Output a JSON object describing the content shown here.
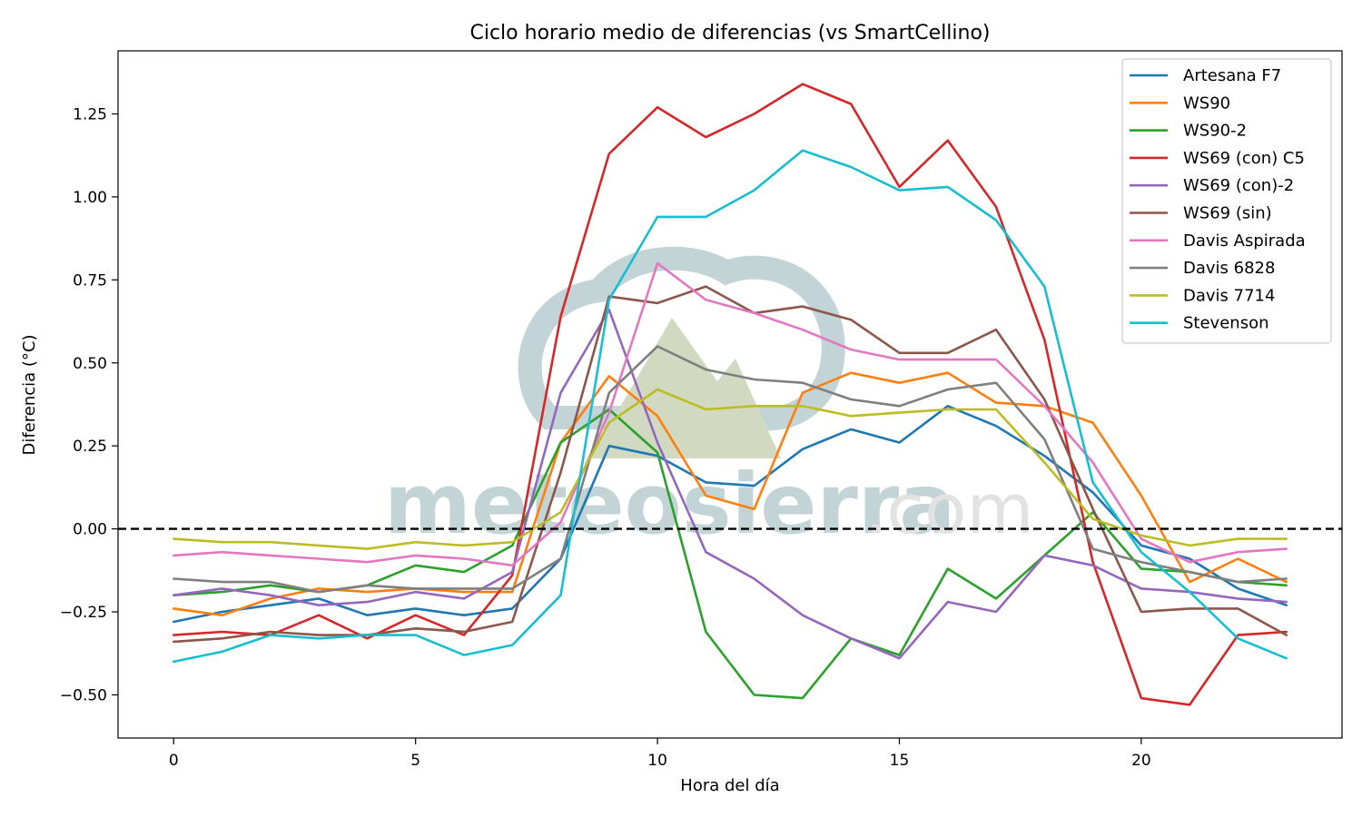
{
  "chart_data": {
    "type": "line",
    "title": "Ciclo horario medio de diferencias (vs SmartCellino)",
    "xlabel": "Hora del día",
    "ylabel": "Diferencia (°C)",
    "xlim": [
      -1.15,
      24.15
    ],
    "ylim": [
      -0.63,
      1.44
    ],
    "xticks": [
      0,
      5,
      10,
      15,
      20
    ],
    "yticks": [
      -0.5,
      -0.25,
      0.0,
      0.25,
      0.5,
      0.75,
      1.0,
      1.25
    ],
    "ytick_labels": [
      "−0.50",
      "−0.25",
      "0.00",
      "0.25",
      "0.50",
      "0.75",
      "1.00",
      "1.25"
    ],
    "reference_line": {
      "y": 0,
      "style": "dashed",
      "color": "#000000"
    },
    "legend_position": "top-right",
    "grid": false,
    "x": [
      0,
      1,
      2,
      3,
      4,
      5,
      6,
      7,
      8,
      9,
      10,
      11,
      12,
      13,
      14,
      15,
      16,
      17,
      18,
      19,
      20,
      21,
      22,
      23
    ],
    "series": [
      {
        "name": "Artesana F7",
        "color": "#1f77b4",
        "values": [
          -0.28,
          -0.25,
          -0.23,
          -0.21,
          -0.26,
          -0.24,
          -0.26,
          -0.24,
          -0.09,
          0.25,
          0.22,
          0.14,
          0.13,
          0.24,
          0.3,
          0.26,
          0.37,
          0.31,
          0.22,
          0.11,
          -0.05,
          -0.09,
          -0.18,
          -0.23
        ]
      },
      {
        "name": "WS90",
        "color": "#ff7f0e",
        "values": [
          -0.24,
          -0.26,
          -0.21,
          -0.18,
          -0.19,
          -0.18,
          -0.19,
          -0.19,
          0.26,
          0.46,
          0.34,
          0.1,
          0.06,
          0.41,
          0.47,
          0.44,
          0.47,
          0.38,
          0.37,
          0.32,
          0.1,
          -0.16,
          -0.09,
          -0.16
        ]
      },
      {
        "name": "WS90-2",
        "color": "#2ca02c",
        "values": [
          -0.2,
          -0.19,
          -0.17,
          -0.19,
          -0.17,
          -0.11,
          -0.13,
          -0.05,
          0.26,
          0.36,
          0.23,
          -0.31,
          -0.5,
          -0.51,
          -0.33,
          -0.38,
          -0.12,
          -0.21,
          -0.08,
          0.05,
          -0.12,
          -0.13,
          -0.16,
          -0.17
        ]
      },
      {
        "name": "WS69 (con) C5",
        "color": "#d62728",
        "values": [
          -0.32,
          -0.31,
          -0.32,
          -0.26,
          -0.33,
          -0.26,
          -0.32,
          -0.14,
          0.64,
          1.13,
          1.27,
          1.18,
          1.25,
          1.34,
          1.28,
          1.03,
          1.17,
          0.97,
          0.57,
          -0.1,
          -0.51,
          -0.53,
          -0.32,
          -0.31
        ]
      },
      {
        "name": "WS69 (con)-2",
        "color": "#9467bd",
        "values": [
          -0.2,
          -0.18,
          -0.2,
          -0.23,
          -0.22,
          -0.19,
          -0.21,
          -0.13,
          0.41,
          0.66,
          0.26,
          -0.07,
          -0.15,
          -0.26,
          -0.33,
          -0.39,
          -0.22,
          -0.25,
          -0.08,
          -0.11,
          -0.18,
          -0.19,
          -0.21,
          -0.22
        ]
      },
      {
        "name": "WS69 (sin)",
        "color": "#8c564b",
        "values": [
          -0.34,
          -0.33,
          -0.31,
          -0.32,
          -0.32,
          -0.3,
          -0.31,
          -0.28,
          0.17,
          0.7,
          0.68,
          0.73,
          0.65,
          0.67,
          0.63,
          0.53,
          0.53,
          0.6,
          0.39,
          0.06,
          -0.25,
          -0.24,
          -0.24,
          -0.32
        ]
      },
      {
        "name": "Davis Aspirada",
        "color": "#e377c2",
        "values": [
          -0.08,
          -0.07,
          -0.08,
          -0.09,
          -0.1,
          -0.08,
          -0.09,
          -0.11,
          0.02,
          0.35,
          0.8,
          0.69,
          0.65,
          0.6,
          0.54,
          0.51,
          0.51,
          0.51,
          0.37,
          0.2,
          -0.03,
          -0.1,
          -0.07,
          -0.06
        ]
      },
      {
        "name": "Davis 6828",
        "color": "#7f7f7f",
        "values": [
          -0.15,
          -0.16,
          -0.16,
          -0.19,
          -0.17,
          -0.18,
          -0.18,
          -0.18,
          -0.09,
          0.41,
          0.55,
          0.48,
          0.45,
          0.44,
          0.39,
          0.37,
          0.42,
          0.44,
          0.27,
          -0.06,
          -0.1,
          -0.13,
          -0.16,
          -0.15
        ]
      },
      {
        "name": "Davis 7714",
        "color": "#bcbd22",
        "values": [
          -0.03,
          -0.04,
          -0.04,
          -0.05,
          -0.06,
          -0.04,
          -0.05,
          -0.04,
          0.05,
          0.32,
          0.42,
          0.36,
          0.37,
          0.37,
          0.34,
          0.35,
          0.36,
          0.36,
          0.2,
          0.03,
          -0.02,
          -0.05,
          -0.03,
          -0.03
        ]
      },
      {
        "name": "Stevenson",
        "color": "#17becf",
        "values": [
          -0.4,
          -0.37,
          -0.32,
          -0.33,
          -0.32,
          -0.32,
          -0.38,
          -0.35,
          -0.2,
          0.69,
          0.94,
          0.94,
          1.02,
          1.14,
          1.09,
          1.02,
          1.03,
          0.93,
          0.73,
          0.14,
          -0.07,
          -0.19,
          -0.33,
          -0.39
        ]
      }
    ]
  },
  "watermark": {
    "brand": "meteosierra",
    "suffix": ".com",
    "accent": "#b9cdd1",
    "accent_green": "#c9d4b7"
  }
}
